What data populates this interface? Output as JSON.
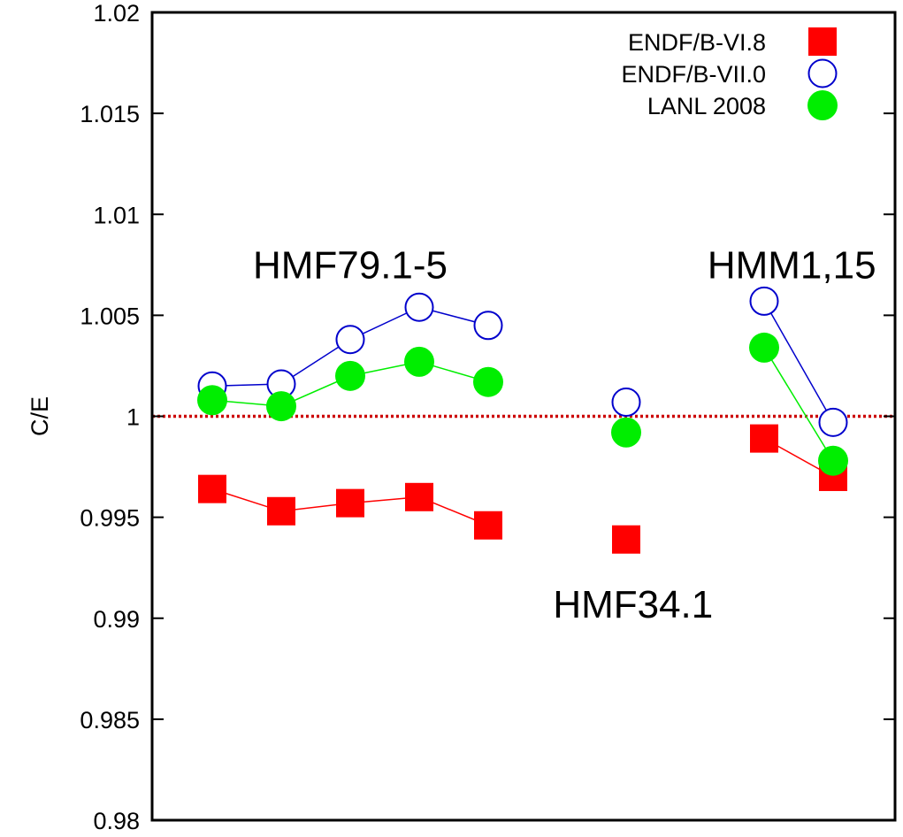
{
  "chart_data": {
    "type": "scatter",
    "title": "",
    "xlabel": "",
    "ylabel": "C/E",
    "ylim": [
      0.98,
      1.02
    ],
    "yticks": [
      "0.98",
      "0.985",
      "0.99",
      "0.995",
      "1",
      "1.005",
      "1.01",
      "1.015",
      "1.02"
    ],
    "xlim": [
      0,
      10
    ],
    "grid": false,
    "legend_position": "top-right",
    "reference_line": {
      "y": 1.0,
      "style": "dotted",
      "color": "#cc0000"
    },
    "series": [
      {
        "name": "ENDF/B-VI.8",
        "marker": "square-filled",
        "color": "#ff0000",
        "groups": [
          {
            "x": [
              1,
              2,
              3,
              4,
              5
            ],
            "y": [
              0.9964,
              0.9953,
              0.9957,
              0.996,
              0.9946
            ],
            "connected": true
          },
          {
            "x": [
              7
            ],
            "y": [
              0.9939
            ],
            "connected": false
          },
          {
            "x": [
              9,
              10
            ],
            "y": [
              0.9989,
              0.997
            ],
            "connected": true
          }
        ]
      },
      {
        "name": "ENDF/B-VII.0",
        "marker": "circle-open",
        "color": "#0000cc",
        "groups": [
          {
            "x": [
              1,
              2,
              3,
              4,
              5
            ],
            "y": [
              1.0015,
              1.0016,
              1.0038,
              1.0054,
              1.0045
            ],
            "connected": true
          },
          {
            "x": [
              7
            ],
            "y": [
              1.0007
            ],
            "connected": false
          },
          {
            "x": [
              9,
              10
            ],
            "y": [
              1.0057,
              0.9997
            ],
            "connected": true
          }
        ]
      },
      {
        "name": "LANL 2008",
        "marker": "circle-filled",
        "color": "#00ee00",
        "groups": [
          {
            "x": [
              1,
              2,
              3,
              4,
              5
            ],
            "y": [
              1.0008,
              1.0005,
              1.002,
              1.0027,
              1.0017
            ],
            "connected": true
          },
          {
            "x": [
              7
            ],
            "y": [
              0.9992
            ],
            "connected": false
          },
          {
            "x": [
              9,
              10
            ],
            "y": [
              1.0034,
              0.9978
            ],
            "connected": true
          }
        ]
      }
    ],
    "annotations": [
      {
        "text": "HMF79.1-5",
        "x": 3.0,
        "y": 1.0075
      },
      {
        "text": "HMM1,15",
        "x": 9.4,
        "y": 1.0075
      },
      {
        "text": "HMF34.1",
        "x": 7.1,
        "y": 0.9907
      }
    ]
  }
}
